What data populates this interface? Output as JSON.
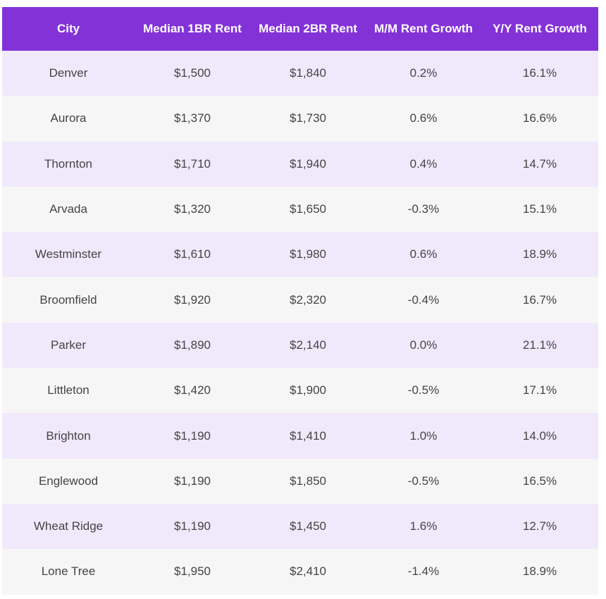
{
  "table": {
    "headers": [
      "City",
      "Median 1BR Rent",
      "Median 2BR Rent",
      "M/M Rent Growth",
      "Y/Y Rent Growth"
    ],
    "rows": [
      [
        "Denver",
        "$1,500",
        "$1,840",
        "0.2%",
        "16.1%"
      ],
      [
        "Aurora",
        "$1,370",
        "$1,730",
        "0.6%",
        "16.6%"
      ],
      [
        "Thornton",
        "$1,710",
        "$1,940",
        "0.4%",
        "14.7%"
      ],
      [
        "Arvada",
        "$1,320",
        "$1,650",
        "-0.3%",
        "15.1%"
      ],
      [
        "Westminster",
        "$1,610",
        "$1,980",
        "0.6%",
        "18.9%"
      ],
      [
        "Broomfield",
        "$1,920",
        "$2,320",
        "-0.4%",
        "16.7%"
      ],
      [
        "Parker",
        "$1,890",
        "$2,140",
        "0.0%",
        "21.1%"
      ],
      [
        "Littleton",
        "$1,420",
        "$1,900",
        "-0.5%",
        "17.1%"
      ],
      [
        "Brighton",
        "$1,190",
        "$1,410",
        "1.0%",
        "14.0%"
      ],
      [
        "Englewood",
        "$1,190",
        "$1,850",
        "-0.5%",
        "16.5%"
      ],
      [
        "Wheat Ridge",
        "$1,190",
        "$1,450",
        "1.6%",
        "12.7%"
      ],
      [
        "Lone Tree",
        "$1,950",
        "$2,410",
        "-1.4%",
        "18.9%"
      ]
    ]
  },
  "colors": {
    "header_bg": "#8332d8",
    "header_text": "#ffffff",
    "row_odd_bg": "#f0e9fb",
    "row_even_bg": "#f7f6f7",
    "cell_text": "#444444"
  }
}
